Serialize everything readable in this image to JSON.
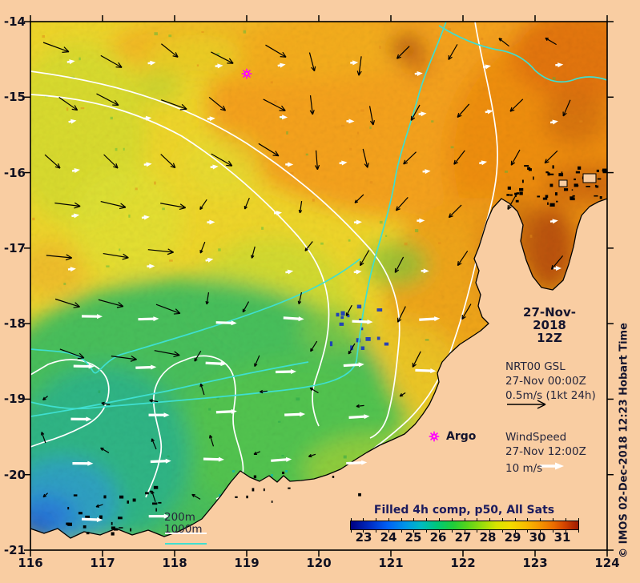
{
  "figure": {
    "background_color": "#F9CDA2",
    "frame_color": "#000000",
    "map_extent": {
      "lon_min": 116,
      "lon_max": 124,
      "lat_min": -21,
      "lat_max": -14
    }
  },
  "axes": {
    "x_ticks": [
      "116",
      "117",
      "118",
      "119",
      "120",
      "121",
      "122",
      "123",
      "124"
    ],
    "y_ticks": [
      "-14",
      "-15",
      "-16",
      "-17",
      "-18",
      "-19",
      "-20",
      "-21"
    ]
  },
  "right_panel": {
    "datetime_line1": "27-Nov-2018",
    "datetime_line2": "12Z",
    "gsl_line1": "NRT00 GSL",
    "gsl_line2": "27-Nov 00:00Z",
    "gsl_line3": "0.5m/s (1kt 24h)",
    "wind_line1": "WindSpeed",
    "wind_line2": "27-Nov 12:00Z",
    "wind_line3": "10 m/s"
  },
  "argo": {
    "label": "Argo",
    "marker_color": "#FF00FF",
    "floats_lonlat": [
      [
        119.0,
        -14.69
      ]
    ]
  },
  "depth_legend": {
    "shallow_label": "200m",
    "deep_label": "1000m",
    "shallow_color": "#FFFFFF",
    "deep_color": "#3FDFD0"
  },
  "credit": "© IMOS 02-Dec-2018 12:23 Hobart Time",
  "colorbar": {
    "title": "Filled 4h comp, p50, All Sats",
    "tick_labels": [
      "23",
      "24",
      "25",
      "26",
      "27",
      "28",
      "29",
      "30",
      "31"
    ],
    "value_range_c": [
      22.5,
      31.5
    ],
    "gradient_stops": [
      [
        "#000082",
        0
      ],
      [
        "#0030C8",
        9
      ],
      [
        "#0060F5",
        16
      ],
      [
        "#0095E8",
        24
      ],
      [
        "#00BCC0",
        31
      ],
      [
        "#00C878",
        38
      ],
      [
        "#20CC3A",
        45
      ],
      [
        "#55D41C",
        51
      ],
      [
        "#9ADE0C",
        58
      ],
      [
        "#D8E400",
        64
      ],
      [
        "#F4DC00",
        70
      ],
      [
        "#F9BC00",
        77
      ],
      [
        "#F59600",
        83
      ],
      [
        "#EC6E00",
        89
      ],
      [
        "#D44400",
        94
      ],
      [
        "#9E1A00",
        100
      ]
    ]
  },
  "vectors": {
    "current_arrow_color": "#000000",
    "wind_arrow_color": "#FFFFFF"
  },
  "contours": {
    "c200m_color": "#FFFFFF",
    "c1000m_color": "#3FDFD0"
  }
}
